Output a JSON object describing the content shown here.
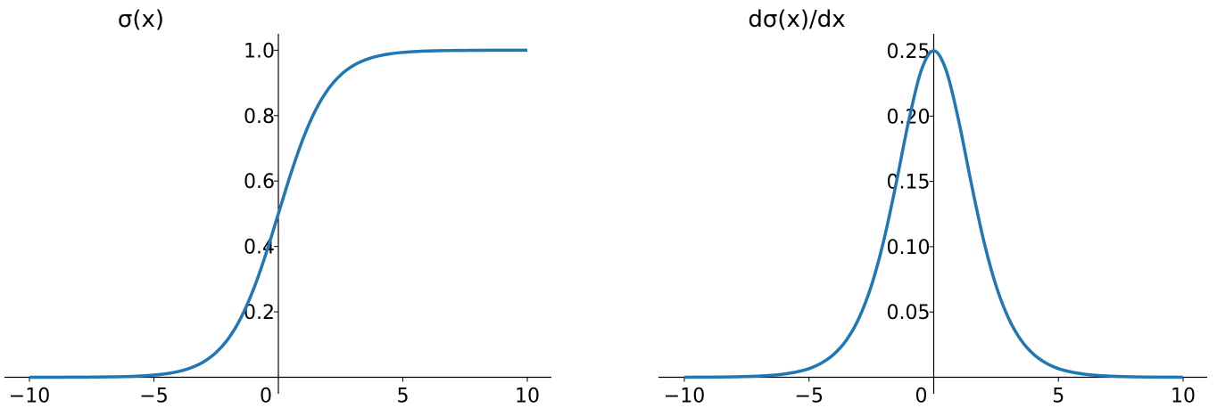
{
  "chart_data": [
    {
      "type": "line",
      "title": "σ(x)",
      "xlim": [
        -11,
        11
      ],
      "ylim": [
        0,
        1.05
      ],
      "xticks": [
        -10,
        -5,
        0,
        5,
        10
      ],
      "xtick_labels": [
        "−10",
        "−5",
        "0",
        "5",
        "10"
      ],
      "yticks": [
        0.2,
        0.4,
        0.6,
        0.8,
        1.0
      ],
      "ytick_labels": [
        "0.2",
        "0.4",
        "0.6",
        "0.8",
        "1.0"
      ],
      "grid": false,
      "spines": "centered at origin",
      "color": "#1f77b4",
      "x": [
        -10,
        -9.5,
        -9,
        -8.5,
        -8,
        -7.5,
        -7,
        -6.5,
        -6,
        -5.5,
        -5,
        -4.5,
        -4,
        -3.5,
        -3,
        -2.5,
        -2,
        -1.5,
        -1,
        -0.5,
        0,
        0.5,
        1,
        1.5,
        2,
        2.5,
        3,
        3.5,
        4,
        4.5,
        5,
        5.5,
        6,
        6.5,
        7,
        7.5,
        8,
        8.5,
        9,
        9.5,
        10
      ],
      "y": [
        0.0,
        0.0001,
        0.0001,
        0.0002,
        0.0003,
        0.0006,
        0.0009,
        0.0015,
        0.0025,
        0.0041,
        0.0067,
        0.011,
        0.018,
        0.0293,
        0.0474,
        0.0759,
        0.1192,
        0.1824,
        0.2689,
        0.3775,
        0.5,
        0.6225,
        0.7311,
        0.8176,
        0.8808,
        0.9241,
        0.9526,
        0.9707,
        0.982,
        0.989,
        0.9933,
        0.9959,
        0.9975,
        0.9985,
        0.9991,
        0.9994,
        0.9997,
        0.9998,
        0.9999,
        0.9999,
        1.0
      ]
    },
    {
      "type": "line",
      "title": "dσ(x)/dx",
      "xlim": [
        -11,
        11
      ],
      "ylim": [
        0,
        0.263
      ],
      "xticks": [
        -10,
        -5,
        0,
        5,
        10
      ],
      "xtick_labels": [
        "−10",
        "−5",
        "0",
        "5",
        "10"
      ],
      "yticks": [
        0.05,
        0.1,
        0.15,
        0.2,
        0.25
      ],
      "ytick_labels": [
        "0.05",
        "0.10",
        "0.15",
        "0.20",
        "0.25"
      ],
      "grid": false,
      "spines": "centered at origin",
      "color": "#1f77b4",
      "x": [
        -10,
        -9.5,
        -9,
        -8.5,
        -8,
        -7.5,
        -7,
        -6.5,
        -6,
        -5.5,
        -5,
        -4.5,
        -4,
        -3.5,
        -3,
        -2.5,
        -2,
        -1.5,
        -1,
        -0.5,
        0,
        0.5,
        1,
        1.5,
        2,
        2.5,
        3,
        3.5,
        4,
        4.5,
        5,
        5.5,
        6,
        6.5,
        7,
        7.5,
        8,
        8.5,
        9,
        9.5,
        10
      ],
      "y": [
        0.0,
        0.0001,
        0.0001,
        0.0002,
        0.0003,
        0.0006,
        0.0009,
        0.0015,
        0.0025,
        0.0041,
        0.0066,
        0.0109,
        0.0177,
        0.0285,
        0.0452,
        0.0701,
        0.105,
        0.1491,
        0.1966,
        0.235,
        0.25,
        0.235,
        0.1966,
        0.1491,
        0.105,
        0.0701,
        0.0452,
        0.0285,
        0.0177,
        0.0109,
        0.0066,
        0.0041,
        0.0025,
        0.0015,
        0.0009,
        0.0006,
        0.0003,
        0.0002,
        0.0001,
        0.0001,
        0.0
      ]
    }
  ]
}
